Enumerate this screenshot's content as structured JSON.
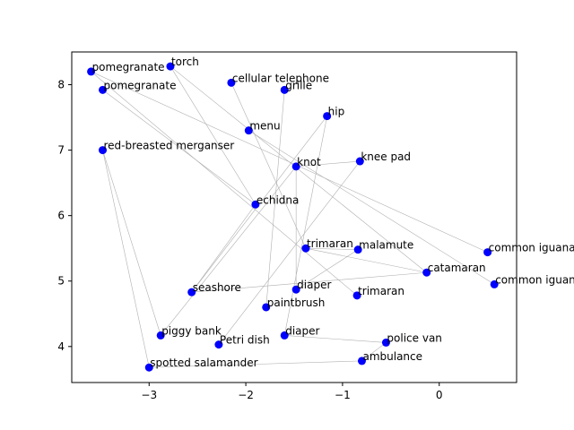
{
  "chart_data": {
    "type": "scatter",
    "title": "",
    "xlabel": "",
    "ylabel": "",
    "xlim": [
      -3.8,
      0.8
    ],
    "ylim": [
      3.45,
      8.5
    ],
    "xticks": [
      -3,
      -2,
      -1,
      0
    ],
    "xtick_labels": [
      "−3",
      "−2",
      "−1",
      "0"
    ],
    "yticks": [
      4,
      5,
      6,
      7,
      8
    ],
    "ytick_labels": [
      "4",
      "5",
      "6",
      "7",
      "8"
    ],
    "grid": false,
    "point_color": "#0000ff",
    "edge_color": "#b0b0b0",
    "points": [
      {
        "label": "pomegranate",
        "x": -3.6,
        "y": 8.2
      },
      {
        "label": "torch",
        "x": -2.78,
        "y": 8.28
      },
      {
        "label": "pomegranate",
        "x": -3.48,
        "y": 7.92
      },
      {
        "label": "cellular telephone",
        "x": -2.15,
        "y": 8.03
      },
      {
        "label": "grille",
        "x": -1.6,
        "y": 7.92
      },
      {
        "label": "hip",
        "x": -1.16,
        "y": 7.52
      },
      {
        "label": "menu",
        "x": -1.97,
        "y": 7.3
      },
      {
        "label": "red-breasted merganser",
        "x": -3.48,
        "y": 7.0
      },
      {
        "label": "knot",
        "x": -1.48,
        "y": 6.75
      },
      {
        "label": "knee pad",
        "x": -0.82,
        "y": 6.83
      },
      {
        "label": "echidna",
        "x": -1.9,
        "y": 6.17
      },
      {
        "label": "trimaran",
        "x": -1.38,
        "y": 5.5
      },
      {
        "label": "malamute",
        "x": -0.84,
        "y": 5.48
      },
      {
        "label": "common iguana",
        "x": 0.5,
        "y": 5.44
      },
      {
        "label": "catamaran",
        "x": -0.13,
        "y": 5.13
      },
      {
        "label": "common iguana",
        "x": 0.57,
        "y": 4.95
      },
      {
        "label": "seashore",
        "x": -2.56,
        "y": 4.83
      },
      {
        "label": "diaper",
        "x": -1.48,
        "y": 4.87
      },
      {
        "label": "trimaran",
        "x": -0.85,
        "y": 4.78
      },
      {
        "label": "paintbrush",
        "x": -1.79,
        "y": 4.6
      },
      {
        "label": "piggy bank",
        "x": -2.88,
        "y": 4.17
      },
      {
        "label": "diaper",
        "x": -1.6,
        "y": 4.17
      },
      {
        "label": "Petri dish",
        "x": -2.28,
        "y": 4.03
      },
      {
        "label": "police van",
        "x": -0.55,
        "y": 4.06
      },
      {
        "label": "ambulance",
        "x": -0.8,
        "y": 3.78
      },
      {
        "label": "spotted salamander",
        "x": -3.0,
        "y": 3.68
      }
    ],
    "edges": [
      [
        0,
        13
      ],
      [
        0,
        18
      ],
      [
        1,
        10
      ],
      [
        1,
        14
      ],
      [
        2,
        10
      ],
      [
        3,
        11
      ],
      [
        4,
        19
      ],
      [
        5,
        16
      ],
      [
        5,
        21
      ],
      [
        6,
        15
      ],
      [
        7,
        25
      ],
      [
        7,
        20
      ],
      [
        8,
        17
      ],
      [
        8,
        20
      ],
      [
        9,
        22
      ],
      [
        10,
        16
      ],
      [
        11,
        12
      ],
      [
        11,
        14
      ],
      [
        12,
        17
      ],
      [
        14,
        16
      ],
      [
        23,
        24
      ],
      [
        23,
        21
      ],
      [
        24,
        25
      ],
      [
        9,
        8
      ]
    ]
  }
}
